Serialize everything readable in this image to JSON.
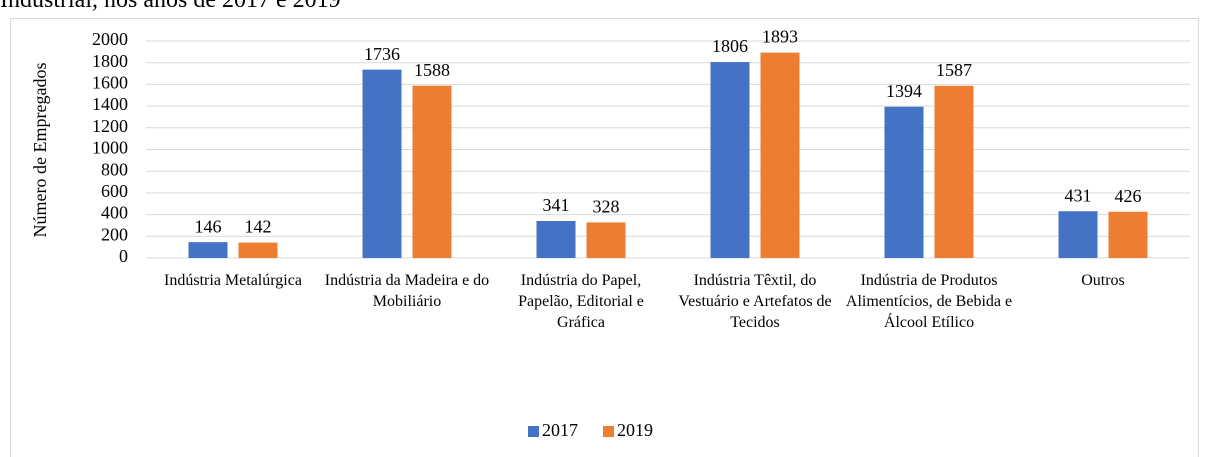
{
  "chart_data": {
    "type": "bar",
    "title": "Industrial, nos anos de 2017 e 2019",
    "y_label": "Número de Empregados",
    "categories": [
      "Indústria Metalúrgica",
      "Indústria da Madeira e do Mobiliário",
      "Indústria do Papel, Papelão, Editorial e Gráfica",
      "Indústria Têxtil, do Vestuário e Artefatos de Tecidos",
      "Indústria de Produtos Alimentícios, de Bebida e Álcool Etílico",
      "Outros"
    ],
    "series": [
      {
        "name": "2017",
        "color": "#4472c4",
        "values": [
          146,
          1736,
          341,
          1806,
          1394,
          431
        ]
      },
      {
        "name": "2019",
        "color": "#ed7d31",
        "values": [
          142,
          1588,
          328,
          1893,
          1587,
          426
        ]
      }
    ],
    "ylim": [
      0,
      2000
    ],
    "yticks": [
      0,
      200,
      400,
      600,
      800,
      1000,
      1200,
      1400,
      1600,
      1800,
      2000
    ],
    "grid": true,
    "legend": "bottom"
  }
}
